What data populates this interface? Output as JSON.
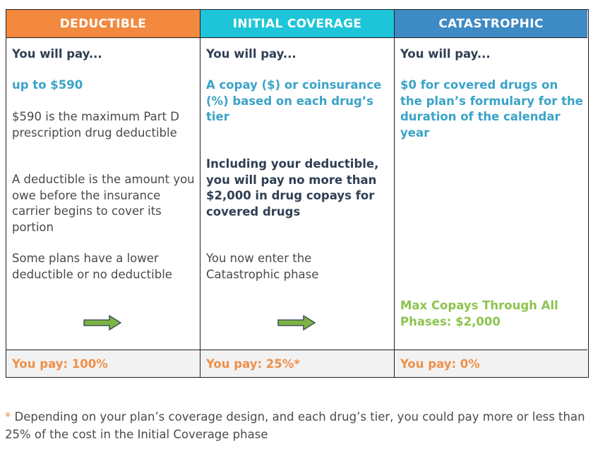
{
  "columns": [
    {
      "header": "DEDUCTIBLE",
      "header_color": "#f2893f",
      "intro": "You will pay...",
      "highlight": "up to $590",
      "para1": "$590 is the maximum Part D prescription drug deductible",
      "para2": "A deductible is the amount you owe before the insurance carrier begins to cover its portion",
      "para3": "Some plans have a lower deductible or no deductible",
      "footer": "You pay:  100%"
    },
    {
      "header": "INITIAL COVERAGE",
      "header_color": "#1ec5d8",
      "intro": "You will pay...",
      "highlight": "A copay ($) or coinsurance (%) based on each drug’s tier",
      "para1": "Including your deductible, you will pay no more than $2,000 in drug copays for covered drugs",
      "para2": "You now enter the Catastrophic phase",
      "footer": "You pay:  25%*"
    },
    {
      "header": "CATASTROPHIC",
      "header_color": "#3d8ac4",
      "intro": "You will pay...",
      "highlight": "$0 for covered drugs on the plan’s formulary for the duration of the calendar year",
      "max_copays": "Max Copays Through All Phases: $2,000",
      "footer": "You pay:  0%"
    }
  ],
  "icons": {
    "arrow": "right-arrow-icon",
    "arrow_color": "#7cb342"
  },
  "footnote": {
    "marker": "*",
    "text": " Depending on your plan’s coverage design, and each drug’s tier, you could pay more or less than 25% of the cost in the Initial Coverage phase"
  }
}
